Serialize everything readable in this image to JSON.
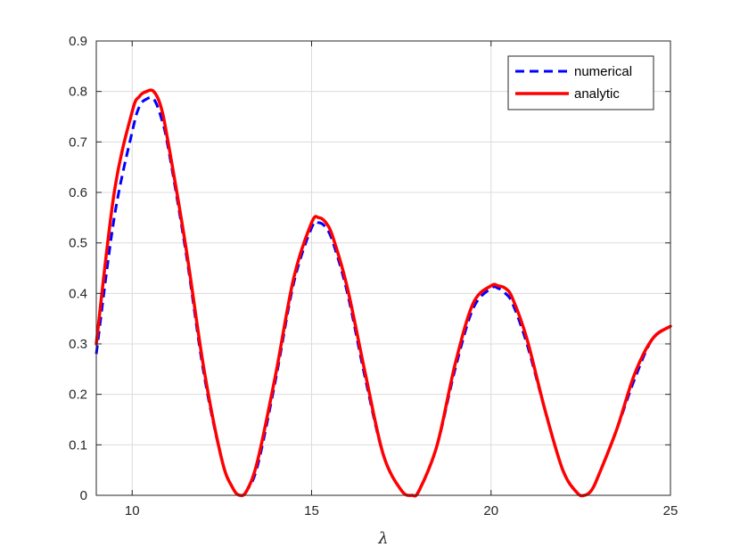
{
  "chart_data": {
    "type": "line",
    "title": "",
    "xlabel": "λ",
    "ylabel": "",
    "xlim": [
      9,
      25
    ],
    "ylim": [
      0,
      0.9
    ],
    "xticks": [
      10,
      15,
      20,
      25
    ],
    "yticks": [
      0,
      0.1,
      0.2,
      0.3,
      0.4,
      0.5,
      0.6,
      0.7,
      0.8,
      0.9
    ],
    "grid": true,
    "legend_position": "top-right",
    "series": [
      {
        "name": "numerical",
        "color": "#0000ff",
        "style": "dashed",
        "x": [
          9.0,
          9.5,
          10.0,
          10.2,
          10.4,
          10.6,
          10.8,
          11.0,
          11.5,
          12.0,
          12.5,
          12.8,
          13.0,
          13.2,
          13.5,
          14.0,
          14.5,
          15.0,
          15.2,
          15.4,
          15.6,
          16.0,
          16.5,
          17.0,
          17.5,
          17.8,
          18.0,
          18.5,
          19.0,
          19.5,
          20.0,
          20.2,
          20.4,
          20.6,
          21.0,
          21.5,
          22.0,
          22.4,
          22.6,
          22.8,
          23.0,
          23.5,
          24.0,
          24.5,
          25.0
        ],
        "values": [
          0.28,
          0.55,
          0.72,
          0.77,
          0.785,
          0.785,
          0.75,
          0.69,
          0.48,
          0.24,
          0.07,
          0.015,
          0.0,
          0.01,
          0.06,
          0.23,
          0.42,
          0.53,
          0.54,
          0.53,
          0.5,
          0.4,
          0.23,
          0.08,
          0.01,
          0.0,
          0.01,
          0.1,
          0.25,
          0.37,
          0.41,
          0.41,
          0.4,
          0.38,
          0.3,
          0.17,
          0.05,
          0.005,
          0.0,
          0.01,
          0.04,
          0.13,
          0.23,
          0.31,
          0.335
        ]
      },
      {
        "name": "analytic",
        "color": "#ff0000",
        "style": "solid",
        "x": [
          9.0,
          9.5,
          10.0,
          10.2,
          10.4,
          10.6,
          10.8,
          11.0,
          11.5,
          12.0,
          12.5,
          12.8,
          13.0,
          13.2,
          13.5,
          14.0,
          14.5,
          15.0,
          15.2,
          15.4,
          15.6,
          16.0,
          16.5,
          17.0,
          17.5,
          17.8,
          18.0,
          18.5,
          19.0,
          19.5,
          20.0,
          20.2,
          20.4,
          20.6,
          21.0,
          21.5,
          22.0,
          22.4,
          22.6,
          22.8,
          23.0,
          23.5,
          24.0,
          24.5,
          25.0
        ],
        "values": [
          0.3,
          0.6,
          0.76,
          0.79,
          0.8,
          0.8,
          0.77,
          0.7,
          0.49,
          0.25,
          0.07,
          0.015,
          0.0,
          0.01,
          0.07,
          0.24,
          0.43,
          0.54,
          0.55,
          0.54,
          0.51,
          0.41,
          0.24,
          0.08,
          0.01,
          0.0,
          0.01,
          0.1,
          0.26,
          0.38,
          0.415,
          0.415,
          0.41,
          0.39,
          0.31,
          0.17,
          0.05,
          0.005,
          0.0,
          0.01,
          0.04,
          0.13,
          0.24,
          0.31,
          0.335
        ]
      }
    ]
  }
}
